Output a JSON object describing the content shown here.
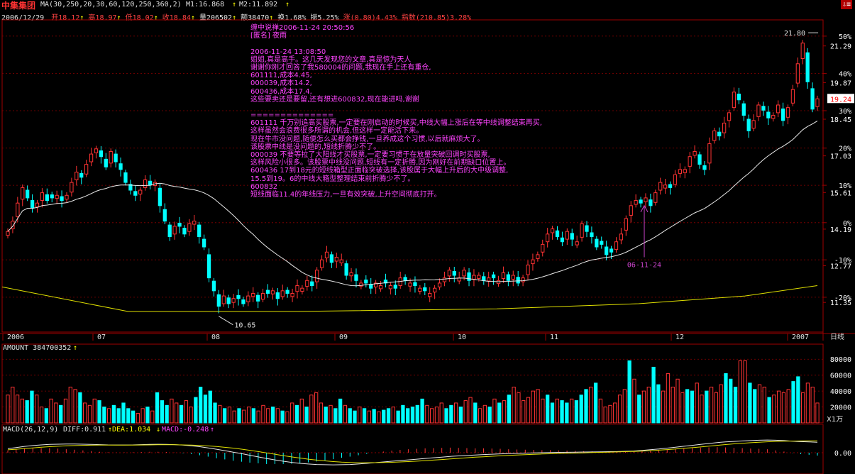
{
  "title_bar": {
    "stock_name": "中集集团",
    "ma_label": "MA(30,250,20,30,60,120,250,360,2)",
    "m1": "M1:16.868",
    "m2": "M2:11.892"
  },
  "quote_bar": {
    "date": "2006/12/29",
    "open": "开18.12",
    "high": "高18.97",
    "low": "低18.02",
    "close": "收18.84",
    "volume": "量206502",
    "amount": "额38470",
    "turnover": "换1.68%",
    "amplitude": "振5.25%",
    "change": "涨(0.80)4.43%",
    "index": "指数(210.85)3.28%"
  },
  "note": {
    "lines": [
      "缠中说禅2006-11-24 20:50:56",
      "[匿名] 夜雨",
      "",
      "2006-11-24 13:08:50",
      "姐姐,真是高手。这几天发现您的文章,真是惊为天人",
      "谢谢你刚才回答了我580004的问题,我现在手上还有重仓,",
      "601111,成本4.45,",
      "000039,成本14.2,",
      "600436,成本17.4,",
      "这些要卖还是要留,还有想进600832,现在能进吗,谢谢",
      "",
      "==============",
      "601111 千万别追高买股票,一定要在刚启动的时候买,中线大幅上涨后在等中线调整结束再买,",
      "这样虽然会浪费很多所谓的机会,但这样一定能活下来。",
      "现在牛市没问题,随便怎么买都会挣钱,一旦养成这个习惯,以后就麻烦大了。",
      "该股票中线是没问题的,短线折腾少不了。",
      "000039 不要等拉了大阳线才买股票,一定要习惯于在放量突破回调时买股票,",
      "这样风险小很多。该股票中线没问题,短线有一定折腾,因为刚好在前期缺口位置上。",
      "600436 17到18元的短线箱型正面临突破选择,该股属于大幅上升后的大中级调整,",
      "15.5到19。6的中线大箱型整理结束前折腾少不了。",
      "600832",
      "短线面临11.4的年线压力,一旦有效突破,上升空间彻底打开。"
    ]
  },
  "colors": {
    "up": "#ff3333",
    "down": "#00ffff",
    "ma_white": "#e8e8e8",
    "ma_yellow": "#e0e000",
    "grid": "#8b0000",
    "axis": "#a00000",
    "note": "#ff44ff",
    "annotation": "#cc44cc"
  },
  "chart_data": [
    {
      "type": "candlestick",
      "title": "中集集团 日线",
      "period_label": "日线",
      "x_months": [
        "2006",
        "07",
        "08",
        "09",
        "10",
        "11",
        "12",
        "2007"
      ],
      "y_price_ticks": [
        "21.29",
        "19.87",
        "18.45",
        "17.03",
        "15.61",
        "14.19",
        "12.77",
        "11.35"
      ],
      "y_pct_ticks": [
        "50%",
        "40%",
        "30%",
        "20%",
        "10%",
        "0%",
        "-10%",
        "-20%"
      ],
      "ylim": [
        10.2,
        22.3
      ],
      "current_price": "19.24",
      "max_label": "21.80",
      "min_label": "10.65",
      "annotation": "06-11-24",
      "closes": [
        14.1,
        14.5,
        15.2,
        15.8,
        15.4,
        15.0,
        15.2,
        15.6,
        15.3,
        15.4,
        15.5,
        15.3,
        15.5,
        16.0,
        16.4,
        16.2,
        16.7,
        17.1,
        17.3,
        17.0,
        16.6,
        17.2,
        16.8,
        16.5,
        16.0,
        15.7,
        15.5,
        15.7,
        16.1,
        15.9,
        16.0,
        15.1,
        14.5,
        13.9,
        14.3,
        14.3,
        14.0,
        14.4,
        14.5,
        13.9,
        13.5,
        12.3,
        11.8,
        11.2,
        11.6,
        11.3,
        11.5,
        11.5,
        11.3,
        11.6,
        11.7,
        11.4,
        11.7,
        11.7,
        11.8,
        11.5,
        11.8,
        11.7,
        11.7,
        12.0,
        11.9,
        12.2,
        12.0,
        12.6,
        13.0,
        13.3,
        12.9,
        13.1,
        13.0,
        12.4,
        12.5,
        12.2,
        12.1,
        12.1,
        11.9,
        12.1,
        12.0,
        12.1,
        12.0,
        11.9,
        12.3,
        12.2,
        12.1,
        12.0,
        11.9,
        11.8,
        11.7,
        11.9,
        12.1,
        12.3,
        12.6,
        12.4,
        12.3,
        12.6,
        12.2,
        12.4,
        12.4,
        12.2,
        12.3,
        12.3,
        12.2,
        12.5,
        12.2,
        12.4,
        12.1,
        12.3,
        12.8,
        13.0,
        13.2,
        13.6,
        14.0,
        14.2,
        13.9,
        13.7,
        14.1,
        13.8,
        13.7,
        14.4,
        14.1,
        13.9,
        13.5,
        13.6,
        13.2,
        13.3,
        13.7,
        14.0,
        14.6,
        15.1,
        15.3,
        15.2,
        15.4,
        15.1,
        15.6,
        16.0,
        15.9,
        15.8,
        16.3,
        16.5,
        16.5,
        17.0,
        17.2,
        16.7,
        16.5,
        17.5,
        18.0,
        17.8,
        18.3,
        18.7,
        19.5,
        19.2,
        18.6,
        18.0,
        18.4,
        19.0,
        18.8,
        18.5,
        18.6,
        19.0,
        18.4,
        18.9,
        19.6,
        20.6,
        21.4,
        19.9,
        18.84,
        19.24
      ]
    },
    {
      "type": "bar",
      "title": "AMOUNT",
      "label": "AMOUNT 384700352",
      "ylim": [
        0,
        90000
      ],
      "y_ticks": [
        "80000",
        "60000",
        "40000",
        "20000"
      ],
      "unit_label": "X1万",
      "values": [
        35000,
        45000,
        35000,
        30000,
        28000,
        40000,
        35000,
        20000,
        18000,
        30000,
        25000,
        22000,
        30000,
        45000,
        42000,
        38000,
        25000,
        22000,
        30000,
        28000,
        20000,
        18000,
        22000,
        18000,
        25000,
        18000,
        15000,
        12000,
        18000,
        20000,
        15000,
        38000,
        28000,
        22000,
        30000,
        25000,
        22000,
        28000,
        20000,
        32000,
        45000,
        35000,
        40000,
        25000,
        22000,
        18000,
        20000,
        15000,
        18000,
        16000,
        20000,
        18000,
        15000,
        22000,
        18000,
        20000,
        18000,
        15000,
        14000,
        25000,
        22000,
        30000,
        20000,
        35000,
        38000,
        25000,
        20000,
        22000,
        18000,
        30000,
        22000,
        18000,
        15000,
        20000,
        18000,
        15000,
        17000,
        14000,
        16000,
        18000,
        20000,
        15000,
        22000,
        18000,
        20000,
        22000,
        30000,
        22000,
        18000,
        20000,
        25000,
        18000,
        22000,
        25000,
        20000,
        28000,
        32000,
        25000,
        18000,
        22000,
        20000,
        30000,
        25000,
        28000,
        35000,
        45000,
        38000,
        28000,
        32000,
        40000,
        42000,
        30000,
        35000,
        25000,
        30000,
        28000,
        25000,
        30000,
        28000,
        35000,
        42000,
        45000,
        50000,
        30000,
        20000,
        22000,
        25000,
        35000,
        42000,
        78000,
        55000,
        35000,
        40000,
        45000,
        70000,
        48000,
        40000,
        62000,
        45000,
        55000,
        38000,
        42000,
        40000,
        50000,
        35000,
        40000,
        45000,
        38000,
        48000,
        62000,
        55000,
        45000,
        78000,
        78000,
        50000,
        42000,
        48000,
        45000,
        32000,
        35000,
        40000,
        38000,
        42000,
        52000,
        58000,
        38000,
        50000,
        45000,
        25000
      ]
    },
    {
      "type": "line",
      "title": "MACD",
      "label_prefix": "MACD(26,12,9)",
      "diff_label": "DIFF:0.911",
      "dea_label": "DEA:1.034",
      "macd_label": "MACD:-0.248",
      "y_ticks": [
        "0.00"
      ],
      "ylim": [
        -1.6,
        1.6
      ],
      "diff": [
        0.35,
        0.45,
        0.55,
        0.62,
        0.68,
        0.72,
        0.74,
        0.75,
        0.75,
        0.74,
        0.72,
        0.7,
        0.68,
        0.67,
        0.67,
        0.68,
        0.7,
        0.72,
        0.73,
        0.72,
        0.7,
        0.66,
        0.6,
        0.52,
        0.42,
        0.3,
        0.18,
        0.05,
        -0.08,
        -0.22,
        -0.36,
        -0.5,
        -0.62,
        -0.74,
        -0.84,
        -0.92,
        -0.98,
        -1.02,
        -1.04,
        -1.05,
        -1.04,
        -1.02,
        -0.98,
        -0.92,
        -0.86,
        -0.8,
        -0.74,
        -0.68,
        -0.62,
        -0.56,
        -0.5,
        -0.44,
        -0.38,
        -0.32,
        -0.28,
        -0.24,
        -0.2,
        -0.16,
        -0.13,
        -0.1,
        -0.08,
        -0.06,
        -0.04,
        -0.02,
        0.0,
        0.02,
        0.03,
        0.04,
        0.05,
        0.06,
        0.07,
        0.08,
        0.09,
        0.1,
        0.12,
        0.15,
        0.2,
        0.26,
        0.32,
        0.4,
        0.48,
        0.56,
        0.64,
        0.72,
        0.8,
        0.88,
        0.94,
        0.98,
        1.02,
        1.05,
        1.08,
        1.1,
        1.08,
        1.05,
        1.0,
        0.96,
        0.94,
        0.91
      ],
      "dea": [
        0.25,
        0.3,
        0.36,
        0.42,
        0.48,
        0.52,
        0.56,
        0.6,
        0.62,
        0.64,
        0.65,
        0.66,
        0.66,
        0.66,
        0.66,
        0.66,
        0.67,
        0.68,
        0.69,
        0.69,
        0.69,
        0.68,
        0.66,
        0.63,
        0.59,
        0.54,
        0.47,
        0.4,
        0.31,
        0.21,
        0.1,
        -0.01,
        -0.13,
        -0.25,
        -0.36,
        -0.46,
        -0.56,
        -0.64,
        -0.71,
        -0.77,
        -0.82,
        -0.85,
        -0.87,
        -0.87,
        -0.86,
        -0.85,
        -0.83,
        -0.8,
        -0.77,
        -0.73,
        -0.69,
        -0.64,
        -0.59,
        -0.54,
        -0.49,
        -0.44,
        -0.39,
        -0.35,
        -0.31,
        -0.27,
        -0.23,
        -0.2,
        -0.17,
        -0.14,
        -0.11,
        -0.09,
        -0.07,
        -0.05,
        -0.03,
        -0.01,
        0.01,
        0.03,
        0.05,
        0.07,
        0.09,
        0.11,
        0.14,
        0.18,
        0.22,
        0.27,
        0.32,
        0.38,
        0.44,
        0.5,
        0.57,
        0.64,
        0.71,
        0.77,
        0.82,
        0.87,
        0.91,
        0.95,
        0.98,
        1.0,
        1.01,
        1.02,
        1.03,
        1.034
      ]
    }
  ]
}
